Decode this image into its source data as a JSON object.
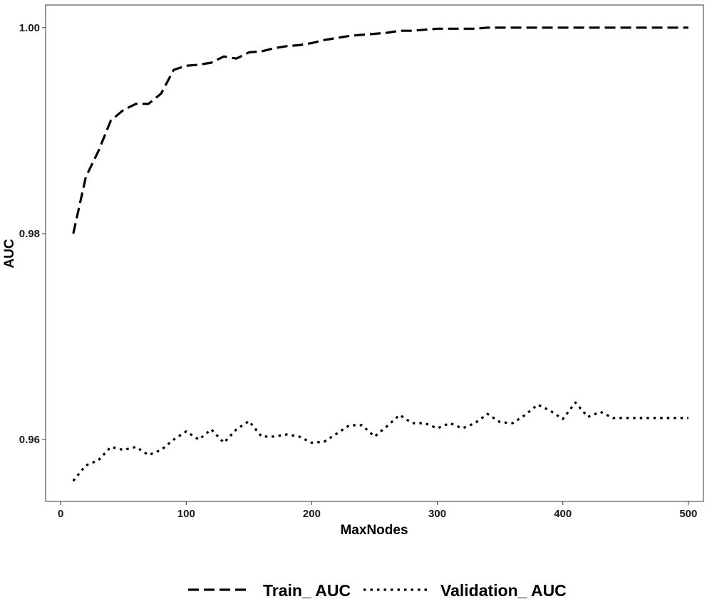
{
  "chart_data": {
    "type": "line",
    "title": "",
    "xlabel": "MaxNodes",
    "ylabel": "AUC",
    "xlim": [
      -12,
      512
    ],
    "ylim": [
      0.954,
      1.0022
    ],
    "xticks": [
      0,
      100,
      200,
      300,
      400,
      500
    ],
    "xtick_labels": [
      "0",
      "100",
      "200",
      "300",
      "400",
      "500"
    ],
    "yticks": [
      0.96,
      0.98,
      1.0
    ],
    "ytick_labels": [
      "0.96",
      "0.98",
      "1.00"
    ],
    "grid": false,
    "legend_position": "bottom",
    "series": [
      {
        "name": "Train_ AUC",
        "line_style": "dashed",
        "color": "#000000",
        "x": [
          10,
          20,
          30,
          40,
          50,
          60,
          70,
          80,
          90,
          100,
          110,
          120,
          130,
          140,
          150,
          160,
          170,
          180,
          190,
          200,
          210,
          220,
          230,
          240,
          250,
          260,
          270,
          280,
          290,
          300,
          310,
          320,
          330,
          340,
          350,
          360,
          370,
          380,
          390,
          400,
          410,
          420,
          430,
          440,
          450,
          460,
          470,
          480,
          490,
          500
        ],
        "y": [
          0.98,
          0.9855,
          0.988,
          0.991,
          0.992,
          0.9926,
          0.9926,
          0.9936,
          0.9959,
          0.9963,
          0.9964,
          0.9966,
          0.9972,
          0.997,
          0.9976,
          0.9977,
          0.998,
          0.9982,
          0.9983,
          0.9985,
          0.9988,
          0.999,
          0.9992,
          0.9993,
          0.9994,
          0.9995,
          0.9997,
          0.9997,
          0.9998,
          0.9999,
          0.9999,
          0.9999,
          0.9999,
          1.0,
          1.0,
          1.0,
          1.0,
          1.0,
          1.0,
          1.0,
          1.0,
          1.0,
          1.0,
          1.0,
          1.0,
          1.0,
          1.0,
          1.0,
          1.0,
          1.0
        ]
      },
      {
        "name": "Validation_ AUC",
        "line_style": "dotted",
        "color": "#000000",
        "x": [
          10,
          20,
          30,
          40,
          50,
          60,
          70,
          80,
          90,
          100,
          110,
          120,
          130,
          140,
          150,
          160,
          170,
          180,
          190,
          200,
          210,
          220,
          230,
          240,
          250,
          260,
          270,
          280,
          290,
          300,
          310,
          320,
          330,
          340,
          350,
          360,
          370,
          380,
          390,
          400,
          410,
          420,
          430,
          440,
          450,
          460,
          470,
          480,
          490,
          500
        ],
        "y": [
          0.956,
          0.9575,
          0.958,
          0.9593,
          0.959,
          0.9593,
          0.9585,
          0.959,
          0.96,
          0.9608,
          0.96,
          0.961,
          0.9597,
          0.961,
          0.9618,
          0.9603,
          0.9603,
          0.9605,
          0.9603,
          0.9597,
          0.9598,
          0.9606,
          0.9614,
          0.9614,
          0.9603,
          0.9613,
          0.9624,
          0.9616,
          0.9616,
          0.9611,
          0.9616,
          0.9611,
          0.9616,
          0.9625,
          0.9617,
          0.9616,
          0.9624,
          0.9634,
          0.9628,
          0.962,
          0.9636,
          0.9622,
          0.9627,
          0.9621,
          0.9621,
          0.9621,
          0.9621,
          0.9621,
          0.9621,
          0.9621
        ]
      }
    ]
  }
}
